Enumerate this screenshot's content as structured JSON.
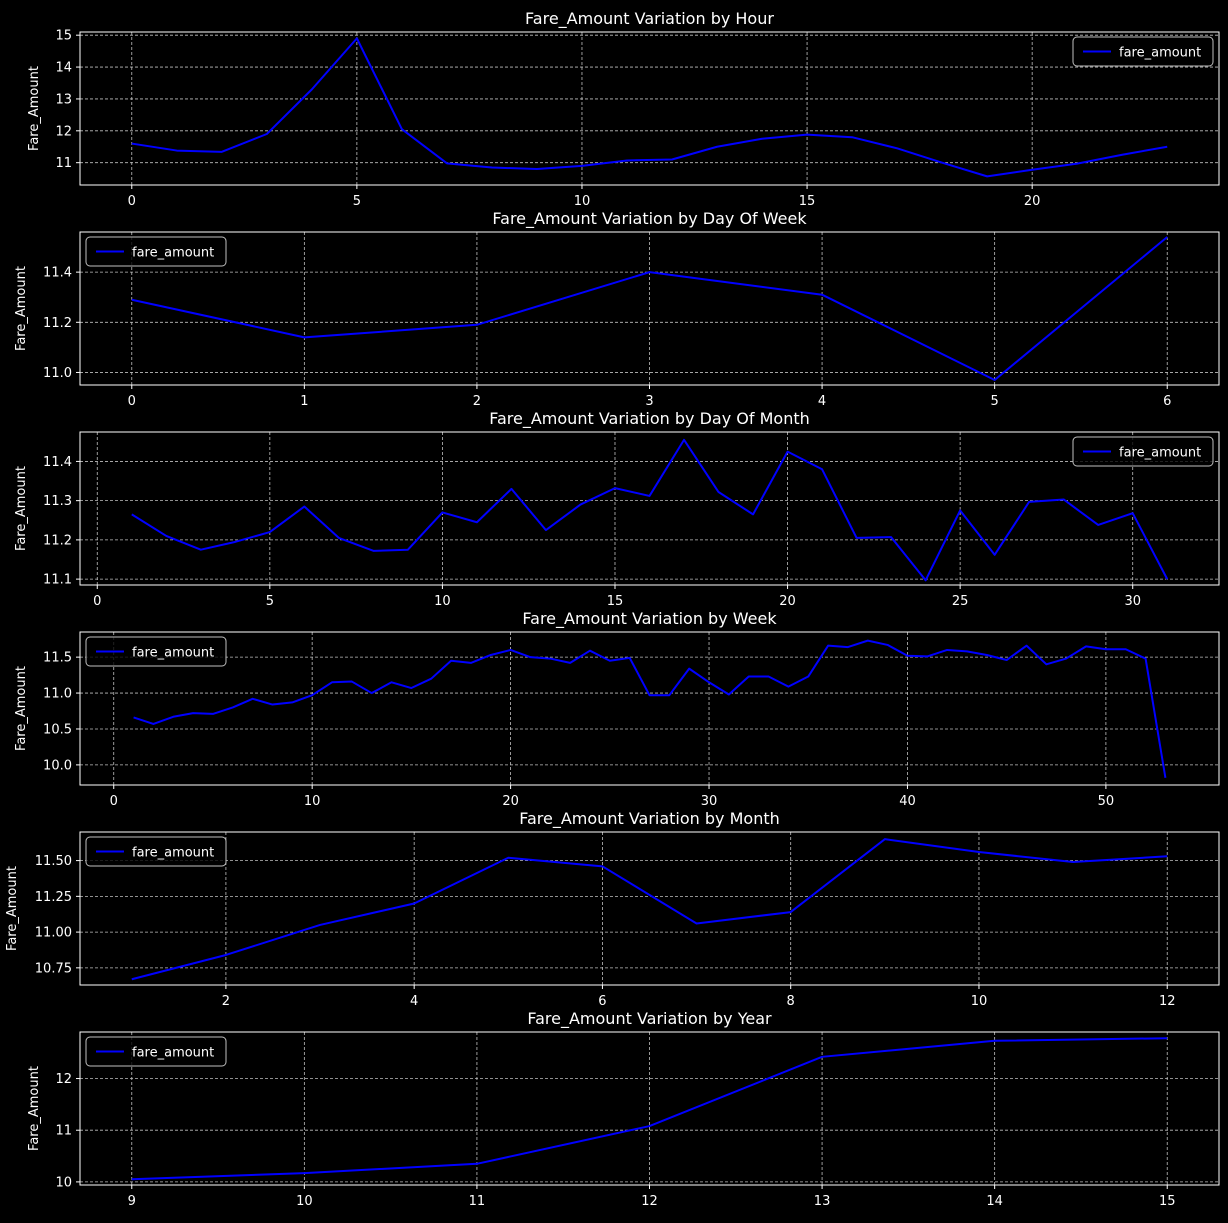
{
  "colors": {
    "background": "#000000",
    "line": "#0000ff",
    "axes": "#ffffff",
    "grid": "#bfbfbf",
    "legend_edge": "#bfbfbf"
  },
  "chart_data": [
    {
      "type": "line",
      "title": "Fare_Amount Variation by Hour",
      "xlabel": "",
      "ylabel": "Fare_Amount",
      "xlim": [
        -1.15,
        24.15
      ],
      "ylim": [
        10.3,
        15.1
      ],
      "xticks": [
        0,
        5,
        10,
        15,
        20
      ],
      "yticks": [
        11,
        12,
        13,
        14,
        15
      ],
      "ytick_labels": [
        "11",
        "12",
        "13",
        "14",
        "15"
      ],
      "grid": true,
      "legend": "top-right",
      "series": [
        {
          "name": "fare_amount",
          "x": [
            0,
            1,
            2,
            3,
            4,
            5,
            6,
            7,
            8,
            9,
            10,
            11,
            12,
            13,
            14,
            15,
            16,
            17,
            18,
            19,
            20,
            21,
            22,
            23
          ],
          "y": [
            11.6,
            11.38,
            11.34,
            11.9,
            13.3,
            14.9,
            12.05,
            10.98,
            10.85,
            10.8,
            10.9,
            11.07,
            11.1,
            11.5,
            11.75,
            11.88,
            11.8,
            11.45,
            11.0,
            10.57,
            10.78,
            10.97,
            11.25,
            11.5
          ]
        }
      ]
    },
    {
      "type": "line",
      "title": "Fare_Amount Variation by Day Of Week",
      "xlabel": "",
      "ylabel": "Fare_Amount",
      "xlim": [
        -0.3,
        6.3
      ],
      "ylim": [
        10.95,
        11.56
      ],
      "xticks": [
        0,
        1,
        2,
        3,
        4,
        5,
        6
      ],
      "yticks": [
        11.0,
        11.2,
        11.4
      ],
      "ytick_labels": [
        "11.0",
        "11.2",
        "11.4"
      ],
      "grid": true,
      "legend": "top-left",
      "series": [
        {
          "name": "fare_amount",
          "x": [
            0,
            1,
            2,
            3,
            4,
            5,
            6
          ],
          "y": [
            11.29,
            11.14,
            11.19,
            11.4,
            11.31,
            10.97,
            11.54
          ]
        }
      ]
    },
    {
      "type": "line",
      "title": "Fare_Amount Variation by Day Of Month",
      "xlabel": "",
      "ylabel": "Fare_Amount",
      "xlim": [
        -0.5,
        32.5
      ],
      "ylim": [
        11.085,
        11.475
      ],
      "xticks": [
        0,
        5,
        10,
        15,
        20,
        25,
        30
      ],
      "yticks": [
        11.1,
        11.2,
        11.3,
        11.4
      ],
      "ytick_labels": [
        "11.1",
        "11.2",
        "11.3",
        "11.4"
      ],
      "grid": true,
      "legend": "top-right",
      "series": [
        {
          "name": "fare_amount",
          "x": [
            1,
            2,
            3,
            4,
            5,
            6,
            7,
            8,
            9,
            10,
            11,
            12,
            13,
            14,
            15,
            16,
            17,
            18,
            19,
            20,
            21,
            22,
            23,
            24,
            25,
            26,
            27,
            28,
            29,
            30,
            31
          ],
          "y": [
            11.265,
            11.21,
            11.175,
            11.195,
            11.22,
            11.285,
            11.205,
            11.172,
            11.175,
            11.27,
            11.245,
            11.33,
            11.225,
            11.29,
            11.332,
            11.312,
            11.455,
            11.322,
            11.265,
            11.425,
            11.38,
            11.205,
            11.207,
            11.097,
            11.275,
            11.162,
            11.297,
            11.303,
            11.238,
            11.268,
            11.1
          ]
        }
      ]
    },
    {
      "type": "line",
      "title": "Fare_Amount Variation by Week",
      "xlabel": "",
      "ylabel": "Fare_Amount",
      "xlim": [
        -1.7,
        55.7
      ],
      "ylim": [
        9.72,
        11.85
      ],
      "xticks": [
        0,
        10,
        20,
        30,
        40,
        50
      ],
      "yticks": [
        10.0,
        10.5,
        11.0,
        11.5
      ],
      "ytick_labels": [
        "10.0",
        "10.5",
        "11.0",
        "11.5"
      ],
      "grid": true,
      "legend": "top-left",
      "series": [
        {
          "name": "fare_amount",
          "x": [
            1,
            2,
            3,
            4,
            5,
            6,
            7,
            8,
            9,
            10,
            11,
            12,
            13,
            14,
            15,
            16,
            17,
            18,
            19,
            20,
            21,
            22,
            23,
            24,
            25,
            26,
            27,
            28,
            29,
            30,
            31,
            32,
            33,
            34,
            35,
            36,
            37,
            38,
            39,
            40,
            41,
            42,
            43,
            44,
            45,
            46,
            47,
            48,
            49,
            50,
            51,
            52,
            53
          ],
          "y": [
            10.66,
            10.57,
            10.67,
            10.72,
            10.71,
            10.8,
            10.92,
            10.84,
            10.87,
            10.97,
            11.15,
            11.16,
            11.0,
            11.15,
            11.07,
            11.2,
            11.45,
            11.42,
            11.53,
            11.6,
            11.5,
            11.48,
            11.42,
            11.59,
            11.45,
            11.49,
            10.97,
            10.97,
            11.34,
            11.15,
            10.98,
            11.23,
            11.23,
            11.09,
            11.23,
            11.66,
            11.64,
            11.73,
            11.67,
            11.52,
            11.51,
            11.6,
            11.58,
            11.53,
            11.46,
            11.66,
            11.4,
            11.48,
            11.65,
            11.61,
            11.61,
            11.48,
            9.82
          ]
        }
      ]
    },
    {
      "type": "line",
      "title": "Fare_Amount Variation by Month",
      "xlabel": "",
      "ylabel": "Fare_Amount",
      "xlim": [
        0.45,
        12.55
      ],
      "ylim": [
        10.63,
        11.7
      ],
      "xticks": [
        2,
        4,
        6,
        8,
        10,
        12
      ],
      "yticks": [
        10.75,
        11.0,
        11.25,
        11.5
      ],
      "ytick_labels": [
        "10.75",
        "11.00",
        "11.25",
        "11.50"
      ],
      "grid": true,
      "legend": "top-left",
      "series": [
        {
          "name": "fare_amount",
          "x": [
            1,
            2,
            3,
            4,
            5,
            6,
            7,
            8,
            9,
            10,
            11,
            12
          ],
          "y": [
            10.67,
            10.84,
            11.05,
            11.2,
            11.52,
            11.46,
            11.06,
            11.14,
            11.65,
            11.56,
            11.49,
            11.53
          ]
        }
      ]
    },
    {
      "type": "line",
      "title": "Fare_Amount Variation by Year",
      "xlabel": "",
      "ylabel": "Fare_Amount",
      "xlim": [
        8.7,
        15.3
      ],
      "ylim": [
        9.94,
        12.9
      ],
      "xticks": [
        9,
        10,
        11,
        12,
        13,
        14,
        15
      ],
      "yticks": [
        10,
        11,
        12
      ],
      "ytick_labels": [
        "10",
        "11",
        "12"
      ],
      "grid": true,
      "legend": "top-left",
      "series": [
        {
          "name": "fare_amount",
          "x": [
            9,
            10,
            11,
            12,
            13,
            14,
            15
          ],
          "y": [
            10.05,
            10.17,
            10.35,
            11.08,
            12.42,
            12.73,
            12.78
          ]
        }
      ]
    }
  ]
}
